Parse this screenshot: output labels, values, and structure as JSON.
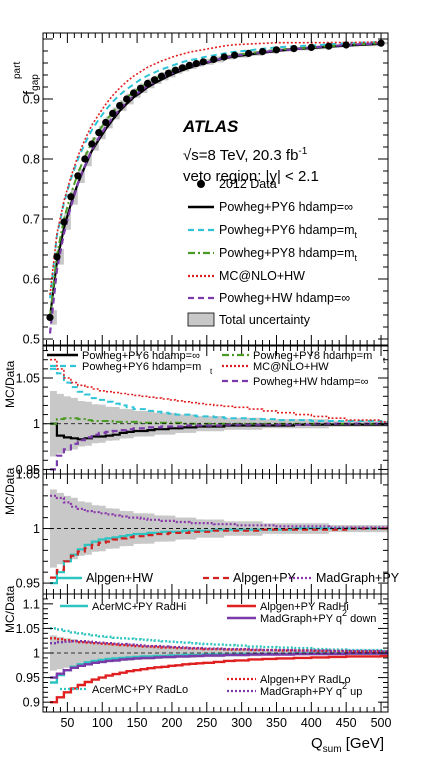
{
  "x_tick_labels": [
    "50",
    "100",
    "150",
    "200",
    "250",
    "300",
    "350",
    "400",
    "450",
    "500"
  ],
  "xlabel": {
    "main": "Q",
    "sub": "sum",
    "unit": " [GeV]"
  },
  "atlas": "ATLAS",
  "energy": {
    "sqrt": "√",
    "s": "s=8 TeV, 20.3 fb",
    "sup": "-1"
  },
  "veto": "veto region: |y| < 2.1",
  "colors": {
    "py6inf": "#000000",
    "py6mt": "#2ec4d6",
    "py8mt": "#4a9a24",
    "mcnlo": "#e02020",
    "hw": "#7a3aaa",
    "alpgen_hw": "#2ec4c0",
    "alpgen_py": "#d02020",
    "madgraph_py": "#8a3aaa",
    "band": "#c8c8c8"
  },
  "panels": [
    {
      "id": "main",
      "ylabel": {
        "main": "f",
        "sub": "gap",
        "sup": "part"
      },
      "ylim": [
        0.49,
        1.01
      ],
      "y_ticks": [
        0.5,
        0.6,
        0.7,
        0.8,
        0.9
      ],
      "y_tick_labels": [
        "0.5",
        "0.6",
        "0.7",
        "0.8",
        "0.9"
      ],
      "legend": [
        {
          "label": "2012 Data",
          "style": "marker"
        },
        {
          "label": "Powheg+PY6 hdamp=∞",
          "style": "solid",
          "color": "#000000"
        },
        {
          "label": "Powheg+PY6 hdamp=m",
          "sub": "t",
          "style": "dashed",
          "color": "#2ec4d6"
        },
        {
          "label": "Powheg+PY8 hdamp=m",
          "sub": "t",
          "style": "dashdot",
          "color": "#4a9a24"
        },
        {
          "label": "MC@NLO+HW",
          "style": "dotted",
          "color": "#e02020"
        },
        {
          "label": "Powheg+HW hdamp=∞",
          "style": "dashed",
          "color": "#7a3aaa"
        },
        {
          "label": "Total uncertainty",
          "style": "box"
        }
      ]
    },
    {
      "id": "ratio1",
      "ylabel": "MC/Data",
      "ylim": [
        0.945,
        1.085
      ],
      "y_ticks": [
        0.95,
        1.0,
        1.05
      ],
      "y_tick_labels": [
        "0.95",
        "1",
        "1.05"
      ],
      "legend": [
        {
          "label": "Powheg+PY6 hdamp=∞",
          "style": "solid",
          "color": "#000000"
        },
        {
          "label": "Powheg+PY8 hdamp=m",
          "style": "dashdot",
          "color": "#4a9a24"
        },
        {
          "label": "Powheg+PY6 hdamp=m",
          "style": "dashed",
          "color": "#2ec4d6"
        },
        {
          "label": "MC@NLO+HW",
          "style": "dotted",
          "color": "#e02020"
        },
        {
          "label": "t",
          "style": "none"
        },
        {
          "label": "t",
          "style": "none"
        },
        {
          "label": "Powheg+HW  hdamp=∞",
          "style": "dashed",
          "color": "#7a3aaa"
        }
      ]
    },
    {
      "id": "ratio2",
      "ylabel": "MC/Data",
      "ylim": [
        0.94,
        1.05
      ],
      "y_ticks": [
        0.95,
        1.0,
        1.05
      ],
      "y_tick_labels": [
        "0.95",
        "1",
        "1.05"
      ],
      "legend": [
        {
          "label": "Alpgen+HW",
          "style": "solid",
          "color": "#2ec4c0"
        },
        {
          "label": "Alpgen+PY",
          "style": "dashed",
          "color": "#d02020"
        },
        {
          "label": "MadGraph+PY",
          "style": "dotted",
          "color": "#8a3aaa"
        }
      ]
    },
    {
      "id": "ratio3",
      "ylabel": "MC/Data",
      "ylim": [
        0.88,
        1.12
      ],
      "y_ticks": [
        0.9,
        0.95,
        1.0,
        1.05,
        1.1
      ],
      "y_tick_labels": [
        "0.9",
        "0.95",
        "1",
        "1.05",
        "1.1"
      ],
      "legend": [
        {
          "label": "AcerMC+PY RadHi",
          "style": "solid",
          "color": "#2ec4c0"
        },
        {
          "label": "Alpgen+PY RadHi",
          "style": "solid",
          "color": "#e02020"
        },
        {
          "label": "MadGraph+PY q",
          "sup": "2",
          "tail": " down",
          "style": "solid",
          "color": "#7a3aaa"
        },
        {
          "label": "AcerMC+PY RadLo",
          "style": "dotted",
          "color": "#2ec4c0"
        },
        {
          "label": "Alpgen+PY RadLo",
          "style": "dotted",
          "color": "#e02020"
        },
        {
          "label": "MadGraph+PY q",
          "sup": "2",
          "tail": " up",
          "style": "dotted",
          "color": "#7a3aaa"
        }
      ]
    }
  ],
  "chart_data": {
    "type": "scatter",
    "xlabel": "Q_sum [GeV]",
    "xlim": [
      15,
      510
    ],
    "bin_edges": [
      25,
      35,
      45,
      55,
      65,
      75,
      85,
      95,
      105,
      115,
      125,
      135,
      145,
      155,
      165,
      175,
      185,
      195,
      205,
      215,
      225,
      235,
      245,
      260,
      275,
      290,
      310,
      330,
      350,
      375,
      400,
      425,
      450,
      500,
      510
    ],
    "main": {
      "ylabel": "f_gap^part",
      "data": {
        "name": "2012 Data",
        "x": [
          25,
          35,
          45,
          55,
          65,
          75,
          85,
          95,
          105,
          115,
          125,
          135,
          145,
          155,
          165,
          175,
          185,
          195,
          205,
          215,
          225,
          235,
          245,
          260,
          275,
          290,
          310,
          330,
          350,
          375,
          400,
          425,
          450,
          500
        ],
        "y": [
          0.536,
          0.637,
          0.695,
          0.737,
          0.772,
          0.8,
          0.825,
          0.844,
          0.861,
          0.876,
          0.889,
          0.9,
          0.91,
          0.918,
          0.926,
          0.932,
          0.938,
          0.943,
          0.948,
          0.952,
          0.956,
          0.959,
          0.962,
          0.966,
          0.97,
          0.973,
          0.976,
          0.979,
          0.982,
          0.984,
          0.986,
          0.988,
          0.99,
          0.993
        ]
      },
      "uncertainty_half_width": [
        0.012,
        0.013,
        0.013,
        0.013,
        0.012,
        0.012,
        0.011,
        0.011,
        0.01,
        0.01,
        0.009,
        0.009,
        0.008,
        0.008,
        0.008,
        0.007,
        0.007,
        0.007,
        0.006,
        0.006,
        0.006,
        0.005,
        0.005,
        0.005,
        0.004,
        0.004,
        0.004,
        0.003,
        0.003,
        0.003,
        0.003,
        0.002,
        0.002,
        0.002
      ]
    },
    "ratio1": {
      "ylabel": "MC/Data",
      "series": [
        {
          "name": "Powheg+PY6 hdamp=∞",
          "ratio": [
            1.0,
            0.987,
            0.985,
            0.984,
            0.983,
            0.984,
            0.986,
            0.986,
            0.987,
            0.988,
            0.99,
            0.991,
            0.992,
            0.992,
            0.993,
            0.994,
            0.994,
            0.995,
            0.995,
            0.996,
            0.996,
            0.997,
            0.997,
            0.997,
            0.998,
            0.998,
            0.998,
            0.998,
            0.998,
            0.999,
            0.999,
            0.999,
            0.999,
            0.999
          ]
        },
        {
          "name": "Powheg+PY6 hdamp=m_t",
          "ratio": [
            1.06,
            1.055,
            1.045,
            1.04,
            1.035,
            1.032,
            1.028,
            1.026,
            1.024,
            1.022,
            1.02,
            1.018,
            1.016,
            1.016,
            1.014,
            1.013,
            1.012,
            1.011,
            1.01,
            1.01,
            1.009,
            1.008,
            1.008,
            1.007,
            1.006,
            1.006,
            1.005,
            1.005,
            1.004,
            1.004,
            1.003,
            1.003,
            1.003,
            1.002
          ]
        },
        {
          "name": "Powheg+PY8 hdamp=m_t",
          "ratio": [
            1.0,
            1.005,
            1.006,
            1.006,
            1.005,
            1.004,
            1.003,
            1.003,
            1.003,
            1.002,
            1.002,
            1.002,
            1.002,
            1.001,
            1.001,
            1.001,
            1.001,
            1.001,
            1.001,
            1.0,
            1.0,
            1.0,
            1.0,
            1.0,
            1.0,
            1.0,
            1.0,
            1.0,
            1.0,
            1.0,
            1.0,
            1.0,
            1.0,
            1.0
          ]
        },
        {
          "name": "MC@NLO+HW",
          "ratio": [
            1.07,
            1.06,
            1.05,
            1.045,
            1.042,
            1.04,
            1.038,
            1.036,
            1.035,
            1.034,
            1.033,
            1.032,
            1.031,
            1.03,
            1.029,
            1.028,
            1.027,
            1.026,
            1.025,
            1.024,
            1.023,
            1.022,
            1.021,
            1.02,
            1.019,
            1.018,
            1.016,
            1.014,
            1.012,
            1.01,
            1.008,
            1.006,
            1.004,
            1.002
          ]
        },
        {
          "name": "Powheg+HW hdamp=∞",
          "ratio": [
            0.95,
            0.965,
            0.972,
            0.978,
            0.982,
            0.985,
            0.988,
            0.99,
            0.991,
            0.992,
            0.993,
            0.994,
            0.995,
            0.995,
            0.996,
            0.996,
            0.997,
            0.997,
            0.997,
            0.998,
            0.998,
            0.998,
            0.998,
            0.998,
            0.999,
            0.999,
            0.999,
            0.999,
            0.999,
            0.999,
            1.0,
            1.0,
            1.0,
            1.0
          ]
        }
      ]
    },
    "ratio2": {
      "ylabel": "MC/Data",
      "series": [
        {
          "name": "Alpgen+HW",
          "ratio": [
            0.95,
            0.96,
            0.97,
            0.976,
            0.981,
            0.985,
            0.988,
            0.99,
            0.991,
            0.992,
            0.993,
            0.994,
            0.995,
            0.995,
            0.996,
            0.996,
            0.997,
            0.997,
            0.997,
            0.998,
            0.998,
            0.998,
            0.998,
            0.999,
            0.999,
            0.999,
            0.999,
            0.999,
            0.999,
            1.0,
            1.0,
            1.0,
            1.0,
            1.0
          ]
        },
        {
          "name": "Alpgen+PY",
          "ratio": [
            0.955,
            0.962,
            0.97,
            0.975,
            0.979,
            0.982,
            0.985,
            0.987,
            0.988,
            0.99,
            0.991,
            0.992,
            0.993,
            0.993,
            0.994,
            0.995,
            0.995,
            0.996,
            0.996,
            0.996,
            0.997,
            0.997,
            0.997,
            0.998,
            0.998,
            0.998,
            0.998,
            0.999,
            0.999,
            0.999,
            0.999,
            0.999,
            1.0,
            1.0
          ]
        },
        {
          "name": "MadGraph+PY",
          "ratio": [
            1.03,
            1.028,
            1.024,
            1.02,
            1.018,
            1.016,
            1.015,
            1.014,
            1.013,
            1.012,
            1.011,
            1.01,
            1.01,
            1.009,
            1.008,
            1.008,
            1.007,
            1.007,
            1.006,
            1.006,
            1.005,
            1.005,
            1.005,
            1.004,
            1.004,
            1.003,
            1.003,
            1.003,
            1.002,
            1.002,
            1.002,
            1.001,
            1.001,
            1.001
          ]
        }
      ]
    },
    "ratio3": {
      "ylabel": "MC/Data",
      "series": [
        {
          "name": "AcerMC+PY RadHi",
          "ratio": [
            0.94,
            0.955,
            0.965,
            0.972,
            0.977,
            0.981,
            0.984,
            0.986,
            0.988,
            0.989,
            0.99,
            0.991,
            0.992,
            0.993,
            0.993,
            0.994,
            0.994,
            0.995,
            0.995,
            0.996,
            0.996,
            0.996,
            0.997,
            0.997,
            0.997,
            0.998,
            0.998,
            0.998,
            0.998,
            0.999,
            0.999,
            0.999,
            0.999,
            0.999
          ]
        },
        {
          "name": "Alpgen+PY RadHi",
          "ratio": [
            0.9,
            0.91,
            0.92,
            0.928,
            0.935,
            0.941,
            0.946,
            0.95,
            0.954,
            0.957,
            0.96,
            0.963,
            0.965,
            0.967,
            0.969,
            0.971,
            0.972,
            0.974,
            0.975,
            0.977,
            0.978,
            0.979,
            0.98,
            0.982,
            0.984,
            0.985,
            0.987,
            0.988,
            0.989,
            0.99,
            0.991,
            0.992,
            0.993,
            0.994
          ]
        },
        {
          "name": "MadGraph+PY q2 down",
          "ratio": [
            0.95,
            0.958,
            0.965,
            0.97,
            0.974,
            0.977,
            0.98,
            0.982,
            0.984,
            0.985,
            0.987,
            0.988,
            0.989,
            0.99,
            0.99,
            0.991,
            0.992,
            0.992,
            0.993,
            0.993,
            0.994,
            0.994,
            0.995,
            0.995,
            0.996,
            0.996,
            0.997,
            0.997,
            0.997,
            0.998,
            0.998,
            0.998,
            0.999,
            0.999
          ]
        },
        {
          "name": "AcerMC+PY RadLo",
          "ratio": [
            1.05,
            1.048,
            1.045,
            1.042,
            1.04,
            1.038,
            1.036,
            1.034,
            1.033,
            1.031,
            1.03,
            1.029,
            1.028,
            1.027,
            1.026,
            1.025,
            1.024,
            1.023,
            1.022,
            1.021,
            1.02,
            1.019,
            1.018,
            1.017,
            1.016,
            1.015,
            1.013,
            1.012,
            1.011,
            1.01,
            1.008,
            1.007,
            1.006,
            1.004
          ]
        },
        {
          "name": "Alpgen+PY RadLo",
          "ratio": [
            1.03,
            1.028,
            1.026,
            1.024,
            1.022,
            1.021,
            1.02,
            1.019,
            1.018,
            1.017,
            1.016,
            1.015,
            1.014,
            1.013,
            1.013,
            1.012,
            1.011,
            1.011,
            1.01,
            1.01,
            1.009,
            1.009,
            1.008,
            1.008,
            1.007,
            1.007,
            1.006,
            1.006,
            1.005,
            1.005,
            1.004,
            1.004,
            1.003,
            1.003
          ]
        },
        {
          "name": "MadGraph+PY q2 up",
          "ratio": [
            1.02,
            1.022,
            1.023,
            1.024,
            1.024,
            1.023,
            1.022,
            1.021,
            1.02,
            1.019,
            1.018,
            1.017,
            1.016,
            1.015,
            1.014,
            1.014,
            1.013,
            1.012,
            1.012,
            1.011,
            1.01,
            1.01,
            1.009,
            1.009,
            1.008,
            1.008,
            1.007,
            1.006,
            1.006,
            1.005,
            1.005,
            1.004,
            1.004,
            1.003
          ]
        }
      ]
    }
  }
}
